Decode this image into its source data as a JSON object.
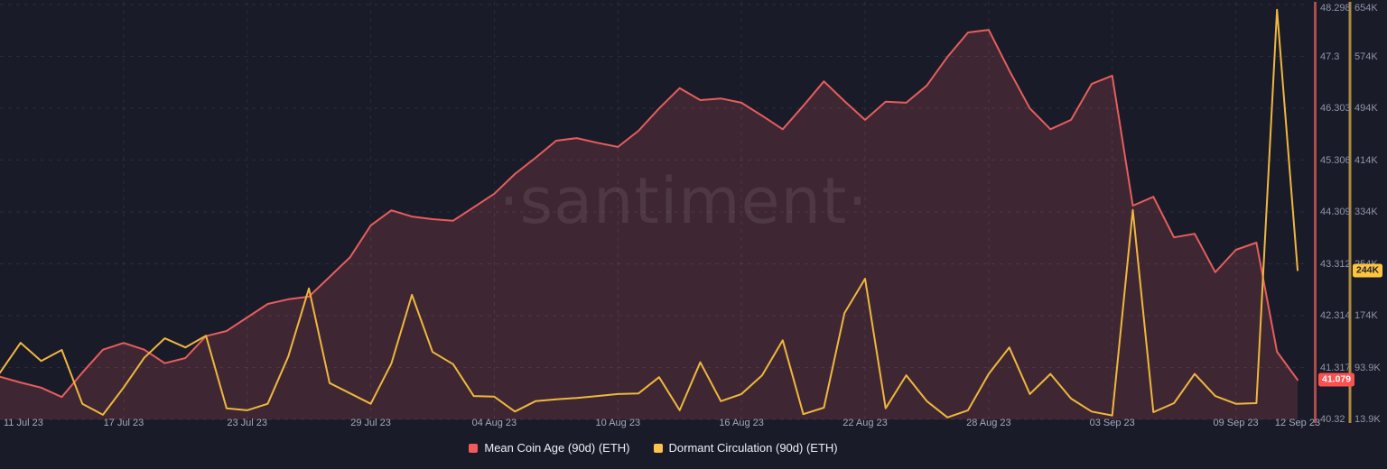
{
  "watermark": "·santiment·",
  "legend": {
    "items": [
      {
        "label": "Mean Coin Age (90d) (ETH)",
        "color": "#f25b5b"
      },
      {
        "label": "Dormant Circulation (90d) (ETH)",
        "color": "#fdc24e"
      }
    ]
  },
  "colors": {
    "background": "#191b29",
    "grid": "rgba(255,255,255,0.08)",
    "axis_text": "#8f95a6",
    "date_text": "#a4aab9",
    "legend_text": "#eef0f5",
    "watermark": "rgba(219,202,224,0.10)",
    "red_area_fill": "rgba(232,93,93,0.18)",
    "badge_red_bg": "#ff5050",
    "badge_red_text": "#ffffff",
    "badge_yellow_bg": "#ffc43d",
    "badge_yellow_text": "#20222f"
  },
  "chart_data": {
    "type": "line",
    "grid": true,
    "legend_position": "bottom",
    "x": [
      "11 Jul 23",
      "12 Jul 23",
      "13 Jul 23",
      "14 Jul 23",
      "15 Jul 23",
      "16 Jul 23",
      "17 Jul 23",
      "18 Jul 23",
      "19 Jul 23",
      "20 Jul 23",
      "21 Jul 23",
      "22 Jul 23",
      "23 Jul 23",
      "24 Jul 23",
      "25 Jul 23",
      "26 Jul 23",
      "27 Jul 23",
      "28 Jul 23",
      "29 Jul 23",
      "30 Jul 23",
      "31 Jul 23",
      "01 Aug 23",
      "02 Aug 23",
      "03 Aug 23",
      "04 Aug 23",
      "05 Aug 23",
      "06 Aug 23",
      "07 Aug 23",
      "08 Aug 23",
      "09 Aug 23",
      "10 Aug 23",
      "11 Aug 23",
      "12 Aug 23",
      "13 Aug 23",
      "14 Aug 23",
      "15 Aug 23",
      "16 Aug 23",
      "17 Aug 23",
      "18 Aug 23",
      "19 Aug 23",
      "20 Aug 23",
      "21 Aug 23",
      "22 Aug 23",
      "23 Aug 23",
      "24 Aug 23",
      "25 Aug 23",
      "26 Aug 23",
      "27 Aug 23",
      "28 Aug 23",
      "29 Aug 23",
      "30 Aug 23",
      "31 Aug 23",
      "01 Sep 23",
      "02 Sep 23",
      "03 Sep 23",
      "04 Sep 23",
      "05 Sep 23",
      "06 Sep 23",
      "07 Sep 23",
      "08 Sep 23",
      "09 Sep 23",
      "10 Sep 23",
      "11 Sep 23",
      "12 Sep 23"
    ],
    "x_tick_labels": [
      "11 Jul 23",
      "17 Jul 23",
      "23 Jul 23",
      "29 Jul 23",
      "04 Aug 23",
      "10 Aug 23",
      "16 Aug 23",
      "22 Aug 23",
      "28 Aug 23",
      "03 Sep 23",
      "09 Sep 23",
      "12 Sep 23"
    ],
    "x_tick_days": [
      0,
      6,
      12,
      18,
      24,
      30,
      36,
      42,
      48,
      54,
      60,
      63
    ],
    "series": [
      {
        "name": "Mean Coin Age (90d) (ETH)",
        "axis": "red",
        "color": "#e85d5d",
        "fill": "rgba(232,93,93,0.18)",
        "latest": 41.079,
        "latest_label": "41.079",
        "values": [
          41.14,
          41.03,
          40.93,
          40.75,
          41.22,
          41.66,
          41.79,
          41.66,
          41.4,
          41.5,
          41.92,
          42.02,
          42.28,
          42.54,
          42.63,
          42.68,
          43.06,
          43.44,
          44.05,
          44.34,
          44.22,
          44.17,
          44.14,
          44.4,
          44.66,
          45.04,
          45.35,
          45.68,
          45.73,
          45.64,
          45.56,
          45.87,
          46.3,
          46.69,
          46.46,
          46.49,
          46.41,
          46.16,
          45.9,
          46.35,
          46.82,
          46.44,
          46.08,
          46.43,
          46.41,
          46.74,
          47.29,
          47.76,
          47.81,
          47.03,
          46.3,
          45.9,
          46.08,
          46.77,
          46.93,
          44.43,
          44.6,
          43.82,
          43.89,
          43.15,
          43.58,
          43.72,
          41.62,
          41.079
        ]
      },
      {
        "name": "Dormant Circulation (90d) (ETH)",
        "axis": "yellow",
        "color": "#efb73e",
        "unit": "K",
        "latest": 244,
        "latest_label": "244K",
        "values_k": [
          86,
          132,
          104,
          121,
          38,
          21,
          63,
          109,
          139,
          125,
          143,
          31,
          28,
          38,
          111,
          216,
          70,
          54,
          38,
          100,
          206,
          118,
          99,
          50,
          49,
          26,
          42,
          45,
          47,
          50,
          53,
          54,
          79,
          28,
          102,
          42,
          53,
          82,
          136,
          22,
          32,
          178,
          231,
          31,
          82,
          42,
          17,
          28,
          84,
          125,
          53,
          84,
          46,
          26,
          20,
          337,
          25,
          39,
          84,
          50,
          38,
          39,
          646,
          244
        ]
      }
    ],
    "axes": {
      "red": {
        "side": "right-inner",
        "line_color": "#ab4b4d",
        "min": 40.32,
        "max": 48.298,
        "tick_values": [
          48.298,
          47.3,
          46.303,
          45.306,
          44.309,
          43.312,
          42.314,
          41.317,
          40.32
        ],
        "tick_labels": [
          "48.298",
          "47.3",
          "46.303",
          "45.306",
          "44.309",
          "43.312",
          "42.314",
          "41.317",
          "40.32"
        ]
      },
      "yellow": {
        "side": "right-outer",
        "line_color": "#ad8a3e",
        "min_k": 13.9,
        "max_k": 654,
        "tick_values_k": [
          654,
          574,
          494,
          414,
          334,
          254,
          174,
          93.9,
          13.9
        ],
        "tick_labels": [
          "654K",
          "574K",
          "494K",
          "414K",
          "334K",
          "254K",
          "174K",
          "93.9K",
          "13.9K"
        ]
      }
    }
  }
}
